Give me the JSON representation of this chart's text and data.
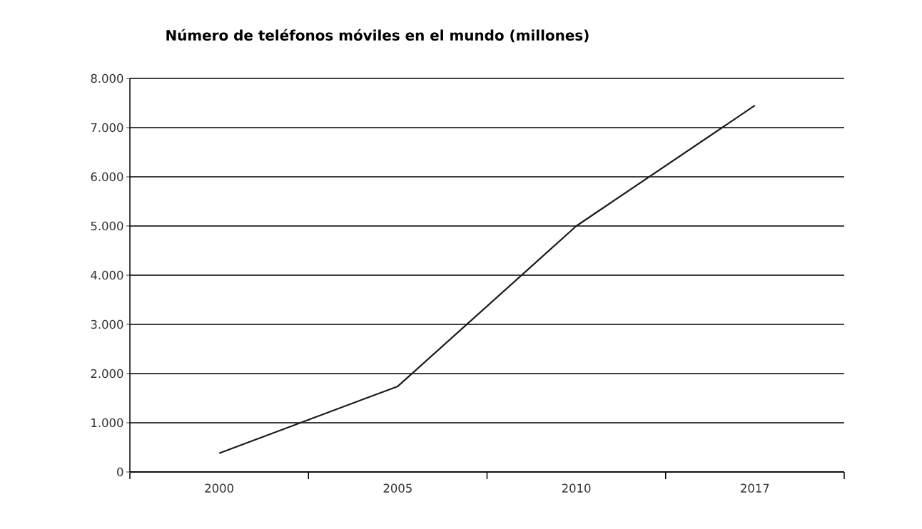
{
  "chart_data": {
    "type": "line",
    "title": "Número de teléfonos móviles en el mundo (millones)",
    "categories": [
      "2000",
      "2005",
      "2010",
      "2017"
    ],
    "series": [
      {
        "color": "#1a1a1a",
        "values": [
          380,
          1740,
          5000,
          7450
        ]
      }
    ],
    "ylim": [
      0,
      8000
    ],
    "yticks": [
      0,
      {
        "value": 1000,
        "label": "1.000"
      },
      {
        "value": 2000,
        "label": "2.000"
      },
      {
        "value": 3000,
        "label": "3.000"
      },
      {
        "value": 4000,
        "label": "4.000"
      },
      {
        "value": 5000,
        "label": "5.000"
      },
      {
        "value": 6000,
        "label": "6.000"
      },
      {
        "value": 7000,
        "label": "7.000"
      },
      {
        "value": 8000,
        "label": "8.000"
      }
    ],
    "grid": "y",
    "marker": "none",
    "line_style": "solid"
  }
}
